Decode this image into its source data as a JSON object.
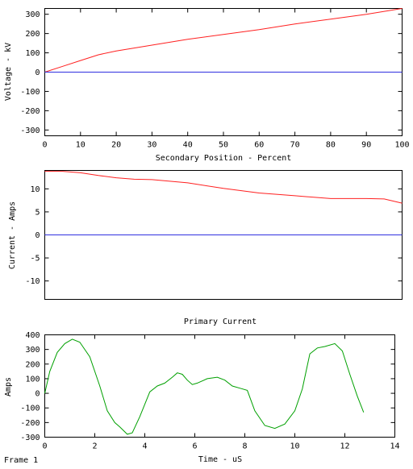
{
  "footer": {
    "frame_label": "Frame 1"
  },
  "chart_data": [
    {
      "type": "line",
      "xlabel": "Secondary Position - Percent",
      "ylabel": "Voltage - kV",
      "xlim": [
        0,
        100
      ],
      "ylim": [
        -330,
        330
      ],
      "xticks": [
        0,
        10,
        20,
        30,
        40,
        50,
        60,
        70,
        80,
        90,
        100
      ],
      "yticks": [
        -300,
        -200,
        -100,
        0,
        100,
        200,
        300
      ],
      "series": [
        {
          "color": "#ff2020",
          "x": [
            0,
            5,
            10,
            15,
            20,
            25,
            30,
            40,
            50,
            60,
            70,
            80,
            90,
            100
          ],
          "y": [
            0,
            30,
            60,
            90,
            110,
            125,
            140,
            170,
            195,
            220,
            250,
            275,
            300,
            330
          ]
        },
        {
          "color": "#3030e0",
          "x": [
            0,
            100
          ],
          "y": [
            0,
            0
          ]
        }
      ]
    },
    {
      "type": "line",
      "xlabel": "",
      "ylabel": "Current - Amps",
      "xlim": [
        0,
        100
      ],
      "ylim": [
        -14,
        14
      ],
      "xticks": [],
      "yticks": [
        -10,
        -5,
        0,
        5,
        10
      ],
      "series": [
        {
          "color": "#ff2020",
          "x": [
            0,
            5,
            10,
            15,
            20,
            25,
            30,
            40,
            50,
            60,
            70,
            80,
            90,
            95,
            100
          ],
          "y": [
            13.8,
            13.8,
            13.5,
            12.9,
            12.4,
            12.1,
            12.0,
            11.3,
            10.1,
            9.1,
            8.5,
            7.9,
            7.9,
            7.8,
            6.9
          ]
        },
        {
          "color": "#3030e0",
          "x": [
            0,
            100
          ],
          "y": [
            0,
            0
          ]
        }
      ]
    },
    {
      "type": "line",
      "title": "Primary Current",
      "xlabel": "Time - uS",
      "ylabel": "Amps",
      "xlim": [
        0,
        14
      ],
      "ylim": [
        -300,
        400
      ],
      "xticks": [
        0,
        2,
        4,
        6,
        8,
        10,
        12,
        14
      ],
      "yticks": [
        -300,
        -200,
        -100,
        0,
        100,
        200,
        300,
        400
      ],
      "series": [
        {
          "color": "#00a000",
          "x": [
            0,
            0.2,
            0.5,
            0.8,
            1.1,
            1.4,
            1.8,
            2.2,
            2.5,
            2.8,
            3.0,
            3.3,
            3.5,
            3.8,
            4.2,
            4.5,
            4.8,
            5.1,
            5.3,
            5.5,
            5.7,
            5.9,
            6.1,
            6.5,
            6.9,
            7.2,
            7.5,
            7.8,
            8.1,
            8.4,
            8.8,
            9.2,
            9.6,
            10.0,
            10.3,
            10.6,
            10.9,
            11.2,
            11.6,
            11.9,
            12.2,
            12.5,
            12.75
          ],
          "y": [
            0,
            150,
            280,
            340,
            370,
            350,
            250,
            50,
            -120,
            -200,
            -230,
            -280,
            -270,
            -160,
            10,
            50,
            70,
            110,
            140,
            130,
            90,
            60,
            70,
            100,
            110,
            90,
            50,
            35,
            20,
            -120,
            -220,
            -240,
            -210,
            -120,
            30,
            270,
            310,
            320,
            340,
            290,
            130,
            -20,
            -130
          ]
        }
      ]
    }
  ]
}
